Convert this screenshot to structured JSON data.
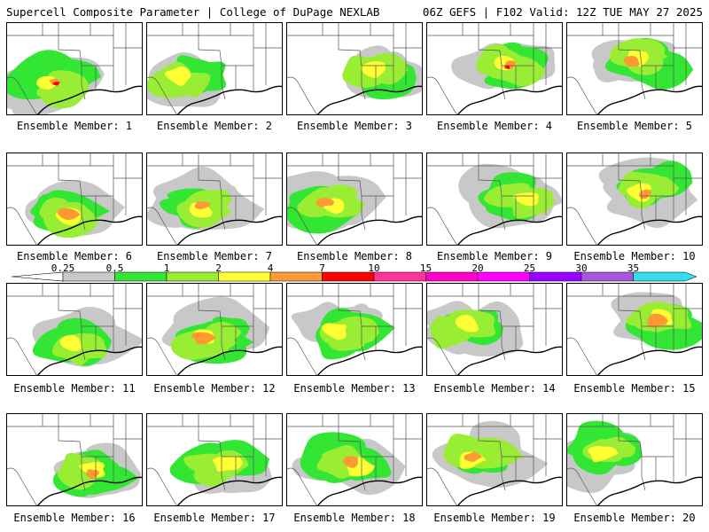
{
  "header": {
    "title_left": "Supercell Composite Parameter | College of DuPage NEXLAB",
    "title_right": "06Z GEFS | F102 Valid: 12Z TUE MAY 27 2025"
  },
  "label_prefix": "Ensemble Member: ",
  "members": [
    {
      "id": "1",
      "label": "Ensemble Member: 1",
      "max": "4-10"
    },
    {
      "id": "2",
      "label": "Ensemble Member: 2",
      "max": "2-4"
    },
    {
      "id": "3",
      "label": "Ensemble Member: 3",
      "max": "2-4"
    },
    {
      "id": "4",
      "label": "Ensemble Member: 4",
      "max": "7-10"
    },
    {
      "id": "5",
      "label": "Ensemble Member: 5",
      "max": "4-7"
    },
    {
      "id": "6",
      "label": "Ensemble Member: 6",
      "max": "4-7"
    },
    {
      "id": "7",
      "label": "Ensemble Member: 7",
      "max": "4-7"
    },
    {
      "id": "8",
      "label": "Ensemble Member: 8",
      "max": "4-7"
    },
    {
      "id": "9",
      "label": "Ensemble Member: 9",
      "max": "2-4"
    },
    {
      "id": "10",
      "label": "Ensemble Member: 10",
      "max": "4-7"
    },
    {
      "id": "11",
      "label": "Ensemble Member: 11",
      "max": "2-4"
    },
    {
      "id": "12",
      "label": "Ensemble Member: 12",
      "max": "4-7"
    },
    {
      "id": "13",
      "label": "Ensemble Member: 13",
      "max": "2-4"
    },
    {
      "id": "14",
      "label": "Ensemble Member: 14",
      "max": "2-4"
    },
    {
      "id": "15",
      "label": "Ensemble Member: 15",
      "max": "4-7"
    },
    {
      "id": "16",
      "label": "Ensemble Member: 16",
      "max": "4-7"
    },
    {
      "id": "17",
      "label": "Ensemble Member: 17",
      "max": "2-4"
    },
    {
      "id": "18",
      "label": "Ensemble Member: 18",
      "max": "4-7"
    },
    {
      "id": "19",
      "label": "Ensemble Member: 19",
      "max": "4-7"
    },
    {
      "id": "20",
      "label": "Ensemble Member: 20",
      "max": "2-4"
    }
  ],
  "legend": {
    "ticks": [
      "0.25",
      "0.5",
      "1",
      "2",
      "4",
      "7",
      "10",
      "15",
      "20",
      "25",
      "30",
      "35"
    ],
    "colors": [
      "#c8c8c8",
      "#33e633",
      "#99ee33",
      "#ffff33",
      "#ff9933",
      "#ff0000",
      "#ff3399",
      "#ff00cc",
      "#ff00ff",
      "#9900ff",
      "#aa55dd",
      "#33ddee"
    ]
  }
}
